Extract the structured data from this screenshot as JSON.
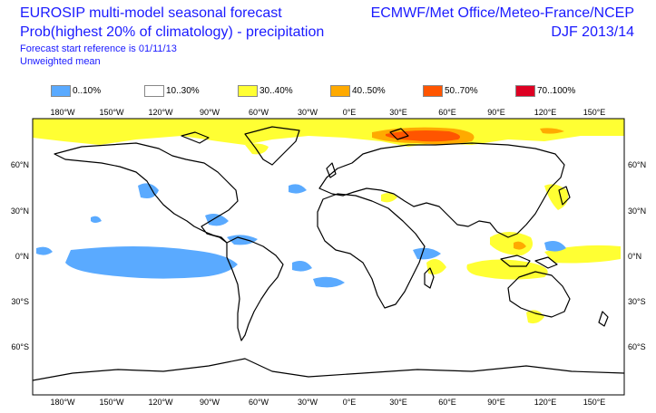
{
  "header": {
    "title": "EUROSIP multi-model seasonal forecast",
    "subtitle": "Prob(highest 20% of climatology) - precipitation",
    "start_reference": "Forecast start reference is 01/11/13",
    "weighting": "Unweighted mean",
    "centres": "ECMWF/Met Office/Meteo-France/NCEP",
    "season": "DJF 2013/14"
  },
  "legend": [
    {
      "label": "0..10%",
      "color": "#5aaaff"
    },
    {
      "label": "10..30%",
      "color": "#ffffff"
    },
    {
      "label": "30..40%",
      "color": "#ffff33"
    },
    {
      "label": "40..50%",
      "color": "#ffaa00"
    },
    {
      "label": "50..70%",
      "color": "#ff5500"
    },
    {
      "label": "70..100%",
      "color": "#dd0022"
    }
  ],
  "axes": {
    "lon_labels": [
      "180°W",
      "150°W",
      "120°W",
      "90°W",
      "60°W",
      "30°W",
      "0°E",
      "30°E",
      "60°E",
      "90°E",
      "120°E",
      "150°E"
    ],
    "lat_labels": [
      "60°N",
      "30°N",
      "0°N",
      "30°S",
      "60°S"
    ]
  }
}
